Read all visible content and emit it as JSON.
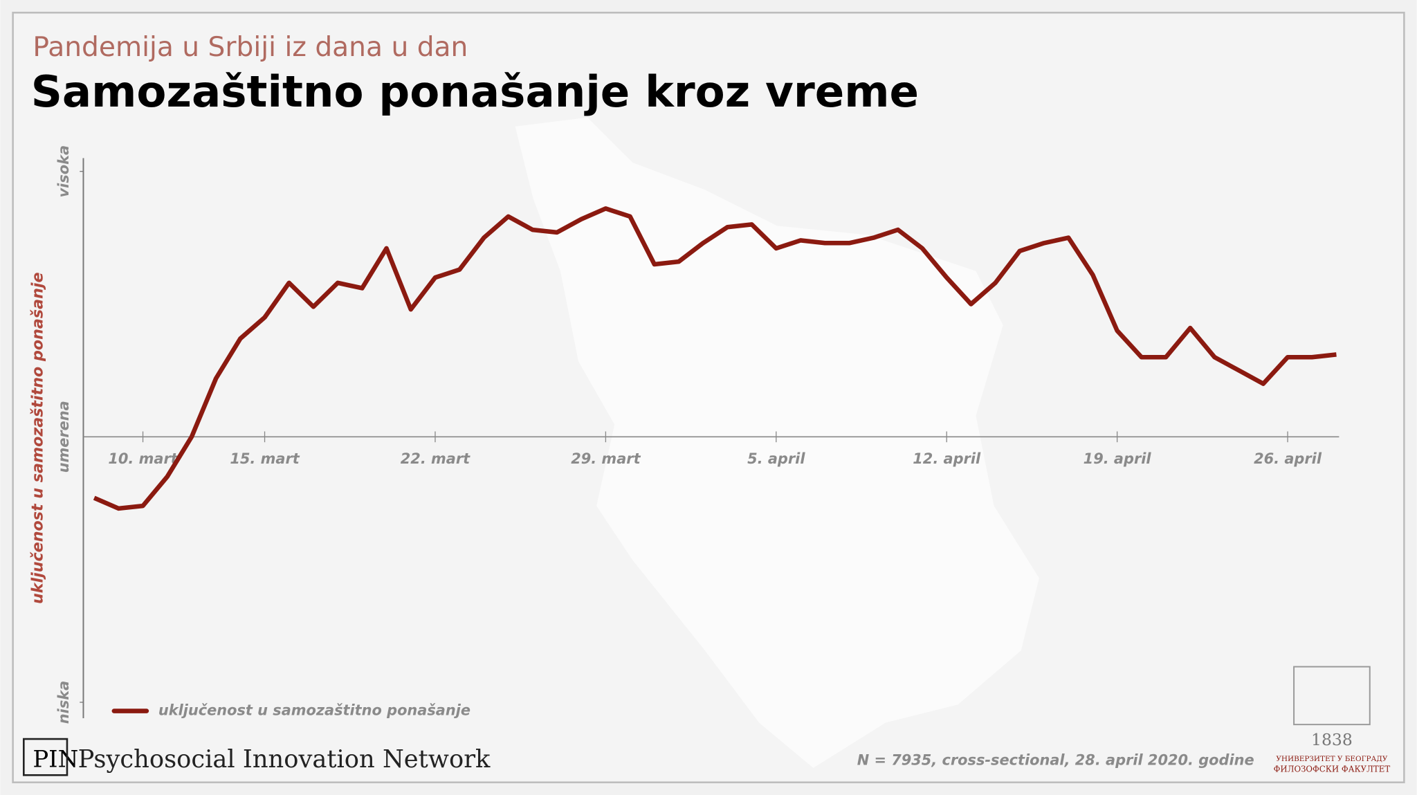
{
  "chart_data": {
    "type": "line",
    "subtitle": "Pandemija u Srbiji iz dana u dan",
    "title": "Samozaštitno ponašanje kroz vreme",
    "y_label": "uključenost u samozaštitno ponašanje",
    "categories": [
      null,
      null,
      "10. mart",
      null,
      null,
      null,
      null,
      "15. mart",
      null,
      null,
      null,
      null,
      null,
      null,
      "22. mart",
      null,
      null,
      null,
      null,
      null,
      null,
      "29. mart",
      null,
      null,
      null,
      null,
      null,
      null,
      "5. april",
      null,
      null,
      null,
      null,
      null,
      null,
      "12. april",
      null,
      null,
      null,
      null,
      null,
      null,
      "19. april",
      null,
      null,
      null,
      null,
      null,
      null,
      "26. april",
      null,
      null
    ],
    "series": [
      {
        "name": "uključenost u samozaštitno ponašanje",
        "color": "#8b1a10",
        "values": [
          -0.23,
          -0.27,
          -0.26,
          -0.15,
          0,
          0.22,
          0.37,
          0.45,
          0.58,
          0.49,
          0.58,
          0.56,
          0.71,
          0.48,
          0.6,
          0.63,
          0.75,
          0.83,
          0.78,
          0.77,
          0.82,
          0.86,
          0.83,
          0.65,
          0.66,
          0.73,
          0.79,
          0.8,
          0.71,
          0.74,
          0.73,
          0.73,
          0.75,
          0.78,
          0.71,
          0.6,
          0.5,
          0.58,
          0.7,
          0.73,
          0.75,
          0.61,
          0.4,
          0.3,
          0.3,
          0.41,
          0.3,
          0.25,
          0.2,
          0.3,
          0.3,
          0.31
        ]
      }
    ],
    "ylim": [
      -1.06,
      1.05
    ],
    "yticks": [
      {
        "value": -1,
        "label": "niska"
      },
      {
        "value": 0,
        "label": "umerena"
      },
      {
        "value": 1,
        "label": "visoka"
      }
    ],
    "legend": "bottom-left"
  },
  "footer": {
    "note": "N = 7935, cross-sectional, 28. april 2020. godine",
    "brand_mark": "PIN",
    "brand": "Psychosocial Innovation Network",
    "university_year": "1838",
    "university": "УНИВЕРЗИТЕТ У БЕОГРАДУ",
    "faculty": "ФИЛОЗОФСКИ ФАКУЛТЕТ"
  }
}
